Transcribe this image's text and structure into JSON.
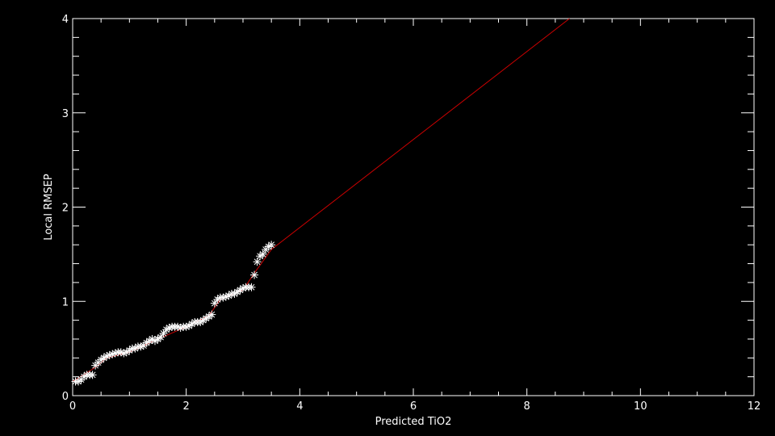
{
  "chart_data": {
    "type": "scatter",
    "xlabel": "Predicted TiO2",
    "ylabel": "Local RMSEP",
    "xlim": [
      0,
      12
    ],
    "ylim": [
      0,
      4
    ],
    "xticks": [
      0,
      2,
      4,
      6,
      8,
      10,
      12
    ],
    "yticks": [
      0,
      1,
      2,
      3,
      4
    ],
    "grid": false,
    "colors": {
      "background": "#000000",
      "axes": "#ffffff",
      "points": "#ffffff",
      "fit_line": "#cc0000"
    },
    "series": [
      {
        "kind": "points",
        "marker": "asterisk",
        "x": [
          0.05,
          0.1,
          0.15,
          0.2,
          0.25,
          0.3,
          0.35,
          0.4,
          0.45,
          0.5,
          0.55,
          0.6,
          0.65,
          0.7,
          0.75,
          0.8,
          0.85,
          0.9,
          0.95,
          1.0,
          1.05,
          1.1,
          1.15,
          1.2,
          1.25,
          1.3,
          1.35,
          1.4,
          1.45,
          1.5,
          1.55,
          1.6,
          1.65,
          1.7,
          1.75,
          1.8,
          1.85,
          1.9,
          1.95,
          2.0,
          2.05,
          2.1,
          2.15,
          2.2,
          2.25,
          2.3,
          2.35,
          2.4,
          2.45,
          2.5,
          2.55,
          2.6,
          2.65,
          2.7,
          2.75,
          2.8,
          2.85,
          2.9,
          2.95,
          3.0,
          3.05,
          3.1,
          3.15,
          3.2,
          3.25,
          3.3,
          3.35,
          3.4,
          3.45,
          3.5
        ],
        "y": [
          0.15,
          0.15,
          0.17,
          0.2,
          0.22,
          0.22,
          0.22,
          0.32,
          0.35,
          0.38,
          0.4,
          0.42,
          0.43,
          0.44,
          0.45,
          0.46,
          0.46,
          0.45,
          0.46,
          0.48,
          0.5,
          0.5,
          0.52,
          0.52,
          0.53,
          0.56,
          0.58,
          0.6,
          0.58,
          0.6,
          0.62,
          0.66,
          0.7,
          0.72,
          0.73,
          0.73,
          0.73,
          0.72,
          0.73,
          0.73,
          0.74,
          0.76,
          0.78,
          0.78,
          0.78,
          0.8,
          0.82,
          0.84,
          0.86,
          0.98,
          1.02,
          1.04,
          1.04,
          1.05,
          1.06,
          1.08,
          1.08,
          1.1,
          1.12,
          1.14,
          1.15,
          1.15,
          1.15,
          1.28,
          1.42,
          1.48,
          1.5,
          1.55,
          1.58,
          1.6
        ]
      },
      {
        "kind": "line",
        "x": [
          0,
          0.4,
          0.6,
          1.0,
          1.5,
          2.0,
          2.4,
          2.6,
          3.0,
          3.2,
          3.5,
          8.75
        ],
        "y": [
          0.15,
          0.3,
          0.4,
          0.46,
          0.6,
          0.73,
          0.85,
          1.02,
          1.12,
          1.3,
          1.55,
          4.0
        ]
      }
    ]
  }
}
